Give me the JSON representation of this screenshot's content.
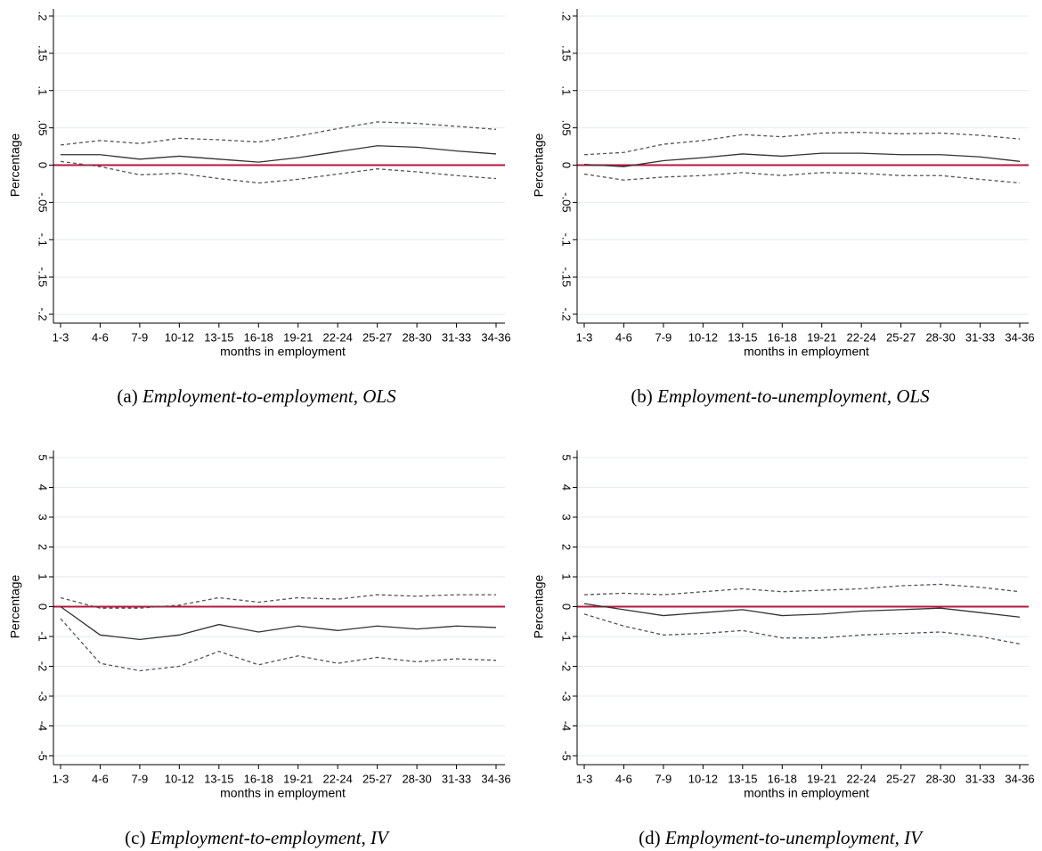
{
  "chart_data": [
    {
      "type": "line",
      "caption_label": "(a)",
      "caption_text": "Employment-to-employment, OLS",
      "xlabel": "months in employment",
      "ylabel": "Percentage",
      "categories": [
        "1-3",
        "4-6",
        "7-9",
        "10-12",
        "13-15",
        "16-18",
        "19-21",
        "22-24",
        "25-27",
        "28-30",
        "31-33",
        "34-36"
      ],
      "ylim": [
        -0.2,
        0.2
      ],
      "yticks": [
        {
          "value": -0.2,
          "label": "-.2"
        },
        {
          "value": -0.15,
          "label": "-.15"
        },
        {
          "value": -0.1,
          "label": "-.1"
        },
        {
          "value": -0.05,
          "label": "-.05"
        },
        0,
        {
          "value": 0.05,
          "label": ".05"
        },
        {
          "value": 0.1,
          "label": ".1"
        },
        {
          "value": 0.15,
          "label": ".15"
        },
        {
          "value": 0.2,
          "label": ".2"
        }
      ],
      "grid": true,
      "reference_line": 0,
      "reference_color": "#b5173b",
      "series": [
        {
          "color": "#333333",
          "dashed": false,
          "values": [
            0.014,
            0.014,
            0.008,
            0.012,
            0.008,
            0.004,
            0.01,
            0.018,
            0.026,
            0.024,
            0.019,
            0.015
          ]
        },
        {
          "color": "#555555",
          "dashed": true,
          "values": [
            0.027,
            0.033,
            0.029,
            0.036,
            0.034,
            0.031,
            0.039,
            0.049,
            0.058,
            0.056,
            0.052,
            0.048
          ]
        },
        {
          "color": "#555555",
          "dashed": true,
          "values": [
            0.005,
            -0.002,
            -0.013,
            -0.011,
            -0.018,
            -0.024,
            -0.019,
            -0.012,
            -0.005,
            -0.009,
            -0.014,
            -0.018
          ]
        }
      ]
    },
    {
      "type": "line",
      "caption_label": "(b)",
      "caption_text": "Employment-to-unemployment, OLS",
      "xlabel": "months in employment",
      "ylabel": "Percentage",
      "categories": [
        "1-3",
        "4-6",
        "7-9",
        "10-12",
        "13-15",
        "16-18",
        "19-21",
        "22-24",
        "25-27",
        "28-30",
        "31-33",
        "34-36"
      ],
      "ylim": [
        -0.2,
        0.2
      ],
      "yticks": [
        {
          "value": -0.2,
          "label": "-.2"
        },
        {
          "value": -0.15,
          "label": "-.15"
        },
        {
          "value": -0.1,
          "label": "-.1"
        },
        {
          "value": -0.05,
          "label": "-.05"
        },
        0,
        {
          "value": 0.05,
          "label": ".05"
        },
        {
          "value": 0.1,
          "label": ".1"
        },
        {
          "value": 0.15,
          "label": ".15"
        },
        {
          "value": 0.2,
          "label": ".2"
        }
      ],
      "grid": true,
      "reference_line": 0,
      "reference_color": "#b5173b",
      "series": [
        {
          "color": "#333333",
          "dashed": false,
          "values": [
            0.001,
            -0.002,
            0.006,
            0.01,
            0.015,
            0.012,
            0.016,
            0.016,
            0.014,
            0.014,
            0.011,
            0.005
          ]
        },
        {
          "color": "#555555",
          "dashed": true,
          "values": [
            0.014,
            0.017,
            0.028,
            0.033,
            0.041,
            0.038,
            0.043,
            0.044,
            0.042,
            0.043,
            0.04,
            0.035
          ]
        },
        {
          "color": "#555555",
          "dashed": true,
          "values": [
            -0.012,
            -0.02,
            -0.016,
            -0.014,
            -0.01,
            -0.014,
            -0.01,
            -0.011,
            -0.014,
            -0.014,
            -0.019,
            -0.024
          ]
        }
      ]
    },
    {
      "type": "line",
      "caption_label": "(c)",
      "caption_text": "Employment-to-employment, IV",
      "xlabel": "months in employment",
      "ylabel": "Percentage",
      "categories": [
        "1-3",
        "4-6",
        "7-9",
        "10-12",
        "13-15",
        "16-18",
        "19-21",
        "22-24",
        "25-27",
        "28-30",
        "31-33",
        "34-36"
      ],
      "ylim": [
        -5,
        5
      ],
      "yticks": [
        -5,
        -4,
        -3,
        -2,
        -1,
        0,
        1,
        2,
        3,
        4,
        5
      ],
      "grid": true,
      "reference_line": 0,
      "reference_color": "#b5173b",
      "series": [
        {
          "color": "#333333",
          "dashed": false,
          "values": [
            0,
            -0.95,
            -1.1,
            -0.95,
            -0.6,
            -0.85,
            -0.65,
            -0.8,
            -0.65,
            -0.75,
            -0.65,
            -0.7
          ]
        },
        {
          "color": "#555555",
          "dashed": true,
          "values": [
            0.3,
            -0.05,
            -0.05,
            0.05,
            0.3,
            0.15,
            0.3,
            0.25,
            0.4,
            0.35,
            0.4,
            0.4
          ]
        },
        {
          "color": "#555555",
          "dashed": true,
          "values": [
            -0.4,
            -1.9,
            -2.15,
            -2.0,
            -1.5,
            -1.95,
            -1.65,
            -1.9,
            -1.7,
            -1.85,
            -1.75,
            -1.8
          ]
        }
      ]
    },
    {
      "type": "line",
      "caption_label": "(d)",
      "caption_text": "Employment-to-unemployment, IV",
      "xlabel": "months in employment",
      "ylabel": "Percentage",
      "categories": [
        "1-3",
        "4-6",
        "7-9",
        "10-12",
        "13-15",
        "16-18",
        "19-21",
        "22-24",
        "25-27",
        "28-30",
        "31-33",
        "34-36"
      ],
      "ylim": [
        -5,
        5
      ],
      "yticks": [
        -5,
        -4,
        -3,
        -2,
        -1,
        0,
        1,
        2,
        3,
        4,
        5
      ],
      "grid": true,
      "reference_line": 0,
      "reference_color": "#b5173b",
      "series": [
        {
          "color": "#333333",
          "dashed": false,
          "values": [
            0.1,
            -0.1,
            -0.3,
            -0.2,
            -0.1,
            -0.3,
            -0.25,
            -0.15,
            -0.1,
            -0.05,
            -0.2,
            -0.35
          ]
        },
        {
          "color": "#555555",
          "dashed": true,
          "values": [
            0.4,
            0.45,
            0.4,
            0.5,
            0.6,
            0.5,
            0.55,
            0.6,
            0.7,
            0.75,
            0.65,
            0.5
          ]
        },
        {
          "color": "#555555",
          "dashed": true,
          "values": [
            -0.25,
            -0.65,
            -0.95,
            -0.9,
            -0.8,
            -1.05,
            -1.05,
            -0.95,
            -0.9,
            -0.85,
            -1.0,
            -1.25
          ]
        }
      ]
    }
  ]
}
